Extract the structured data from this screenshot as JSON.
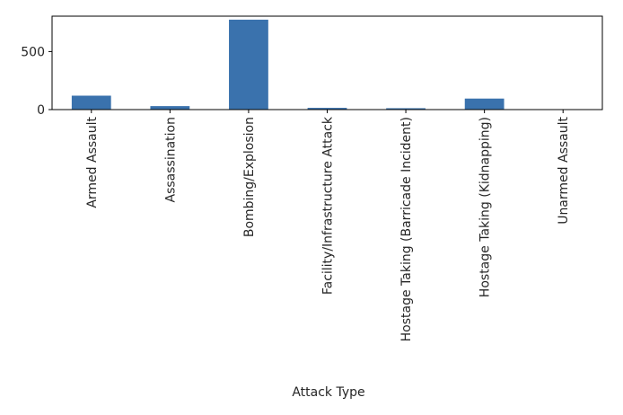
{
  "chart_data": {
    "type": "bar",
    "title": "",
    "xlabel": "Attack Type",
    "ylabel": "",
    "categories": [
      "Armed Assault",
      "Assassination",
      "Bombing/Explosion",
      "Facility/Infrastructure Attack",
      "Hostage Taking (Barricade Incident)",
      "Hostage Taking (Kidnapping)",
      "Unarmed Assault"
    ],
    "values": [
      120,
      30,
      775,
      15,
      12,
      95,
      2
    ],
    "ylim": [
      0,
      805
    ],
    "yticks": [
      0,
      500
    ],
    "grid": false,
    "legend": "none",
    "bar_color": "#3a72ad",
    "axis_color": "#000000"
  }
}
